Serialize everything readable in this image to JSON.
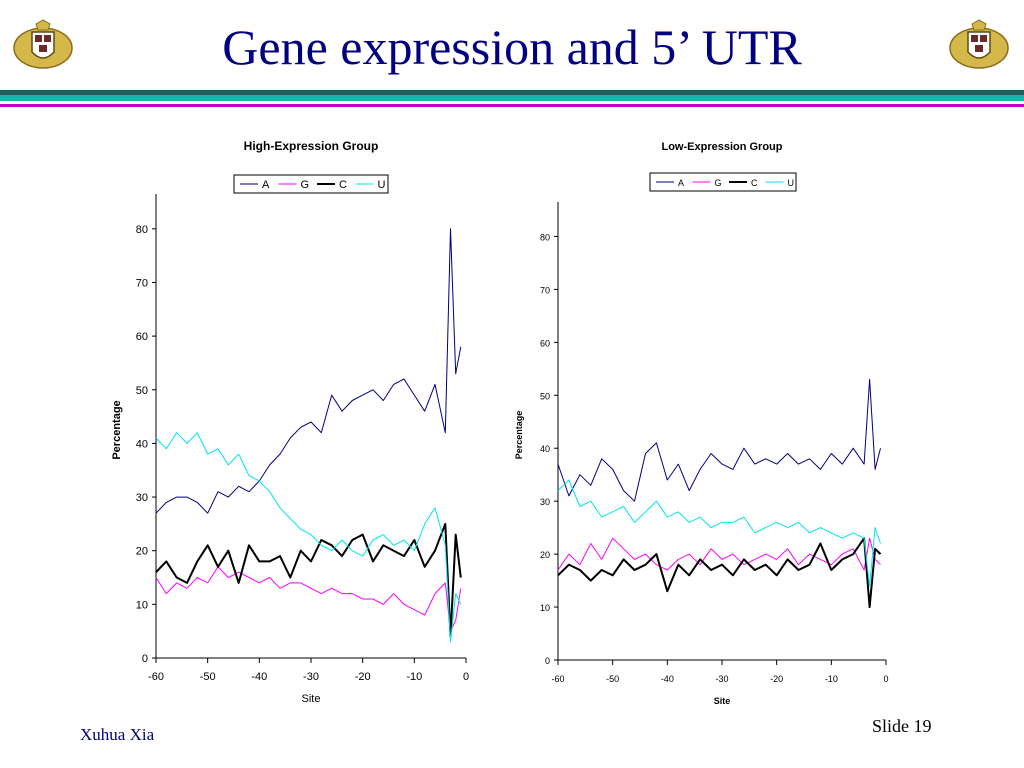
{
  "slide": {
    "title": "Gene expression and 5’ UTR",
    "author": "Xuhua Xia",
    "slide_label": "Slide 19",
    "colors": {
      "title": "#000080",
      "band_dark": "#1f5f5f",
      "band_teal": "#20b2aa",
      "band_magenta": "#c000c0"
    }
  },
  "logo_icon": "university-crest-icon",
  "chart_data": [
    {
      "type": "line",
      "title": "High-Expression Group",
      "xlabel": "Site",
      "ylabel": "Percentage",
      "xlim": [
        -60,
        0
      ],
      "ylim": [
        0,
        85
      ],
      "xticks": [
        "-60",
        "-50",
        "-40",
        "-30",
        "-20",
        "-10",
        "0"
      ],
      "yticks": [
        "0",
        "10",
        "20",
        "30",
        "40",
        "50",
        "60",
        "70",
        "80"
      ],
      "legend_position": "top",
      "grid": false,
      "x": [
        -60,
        -58,
        -56,
        -54,
        -52,
        -50,
        -48,
        -46,
        -44,
        -42,
        -40,
        -38,
        -36,
        -34,
        -32,
        -30,
        -28,
        -26,
        -24,
        -22,
        -20,
        -18,
        -16,
        -14,
        -12,
        -10,
        -8,
        -6,
        -4,
        -3,
        -2,
        -1
      ],
      "series": [
        {
          "name": "A",
          "color": "#000080",
          "width": 1,
          "values": [
            27,
            29,
            30,
            30,
            29,
            27,
            31,
            30,
            32,
            31,
            33,
            36,
            38,
            41,
            43,
            44,
            42,
            49,
            46,
            48,
            49,
            50,
            48,
            51,
            52,
            49,
            46,
            51,
            42,
            80,
            53,
            58
          ]
        },
        {
          "name": "G",
          "color": "#ff00ff",
          "width": 1,
          "values": [
            15,
            12,
            14,
            13,
            15,
            14,
            17,
            15,
            16,
            15,
            14,
            15,
            13,
            14,
            14,
            13,
            12,
            13,
            12,
            12,
            11,
            11,
            10,
            12,
            10,
            9,
            8,
            12,
            14,
            5,
            7,
            13
          ]
        },
        {
          "name": "C",
          "color": "#000000",
          "width": 2,
          "values": [
            16,
            18,
            15,
            14,
            18,
            21,
            17,
            20,
            14,
            21,
            18,
            18,
            19,
            15,
            20,
            18,
            22,
            21,
            19,
            22,
            23,
            18,
            21,
            20,
            19,
            22,
            17,
            20,
            25,
            4,
            23,
            15
          ]
        },
        {
          "name": "U",
          "color": "#00e5ee",
          "width": 1,
          "values": [
            41,
            39,
            42,
            40,
            42,
            38,
            39,
            36,
            38,
            34,
            33,
            31,
            28,
            26,
            24,
            23,
            21,
            20,
            22,
            20,
            19,
            22,
            23,
            21,
            22,
            20,
            25,
            28,
            21,
            3,
            12,
            10
          ]
        }
      ]
    },
    {
      "type": "line",
      "title": "Low-Expression Group",
      "xlabel": "Site",
      "ylabel": "Percentage",
      "xlim": [
        -60,
        0
      ],
      "ylim": [
        0,
        85
      ],
      "xticks": [
        "-60",
        "-50",
        "-40",
        "-30",
        "-20",
        "-10",
        "0"
      ],
      "yticks": [
        "0",
        "10",
        "20",
        "30",
        "40",
        "50",
        "60",
        "70",
        "80"
      ],
      "legend_position": "top",
      "grid": false,
      "x": [
        -60,
        -58,
        -56,
        -54,
        -52,
        -50,
        -48,
        -46,
        -44,
        -42,
        -40,
        -38,
        -36,
        -34,
        -32,
        -30,
        -28,
        -26,
        -24,
        -22,
        -20,
        -18,
        -16,
        -14,
        -12,
        -10,
        -8,
        -6,
        -4,
        -3,
        -2,
        -1
      ],
      "series": [
        {
          "name": "A",
          "color": "#000080",
          "width": 1,
          "values": [
            37,
            31,
            35,
            33,
            38,
            36,
            32,
            30,
            39,
            41,
            34,
            37,
            32,
            36,
            39,
            37,
            36,
            40,
            37,
            38,
            37,
            39,
            37,
            38,
            36,
            39,
            37,
            40,
            37,
            53,
            36,
            40
          ]
        },
        {
          "name": "G",
          "color": "#ff00ff",
          "width": 1,
          "values": [
            17,
            20,
            18,
            22,
            19,
            23,
            21,
            19,
            20,
            18,
            17,
            19,
            20,
            18,
            21,
            19,
            20,
            18,
            19,
            20,
            19,
            21,
            18,
            20,
            19,
            18,
            20,
            21,
            17,
            23,
            19,
            18
          ]
        },
        {
          "name": "C",
          "color": "#000000",
          "width": 2,
          "values": [
            16,
            18,
            17,
            15,
            17,
            16,
            19,
            17,
            18,
            20,
            13,
            18,
            16,
            19,
            17,
            18,
            16,
            19,
            17,
            18,
            16,
            19,
            17,
            18,
            22,
            17,
            19,
            20,
            23,
            10,
            21,
            20
          ]
        },
        {
          "name": "U",
          "color": "#00e5ee",
          "width": 1,
          "values": [
            32,
            34,
            29,
            30,
            27,
            28,
            29,
            26,
            28,
            30,
            27,
            28,
            26,
            27,
            25,
            26,
            26,
            27,
            24,
            25,
            26,
            25,
            26,
            24,
            25,
            24,
            23,
            24,
            23,
            14,
            25,
            22
          ]
        }
      ]
    }
  ]
}
